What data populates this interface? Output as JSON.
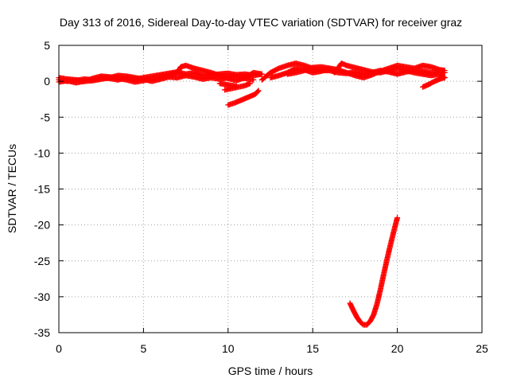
{
  "chart_data": {
    "type": "scatter",
    "title": "Day 313 of 2016, Sidereal Day-to-day VTEC variation (SDTVAR) for receiver graz",
    "xlabel": "GPS time / hours",
    "ylabel": "SDTVAR / TECUs",
    "xlim": [
      0,
      25
    ],
    "ylim": [
      -35,
      5
    ],
    "x_ticks": [
      0,
      5,
      10,
      15,
      20,
      25
    ],
    "y_ticks": [
      5,
      0,
      -5,
      -10,
      -15,
      -20,
      -25,
      -30,
      -35
    ],
    "grid": true,
    "legend": "none",
    "marker": "plus",
    "color": "#ff0000",
    "series": [
      {
        "points": [
          [
            0,
            0.2
          ],
          [
            0.5,
            0.0
          ],
          [
            1,
            0.1
          ],
          [
            1.5,
            0.3
          ],
          [
            2,
            0.2
          ],
          [
            2.5,
            0.5
          ],
          [
            3,
            0.4
          ],
          [
            3.5,
            0.2
          ],
          [
            4,
            0.5
          ],
          [
            4.5,
            0.3
          ],
          [
            5,
            0.5
          ],
          [
            5.5,
            0.7
          ],
          [
            6,
            0.9
          ],
          [
            6.5,
            1.1
          ],
          [
            7,
            1.3
          ],
          [
            7.5,
            1.0
          ],
          [
            8,
            1.2
          ],
          [
            8.5,
            0.8
          ],
          [
            9,
            0.9
          ],
          [
            9.5,
            1.0
          ],
          [
            10,
            1.1
          ],
          [
            10.5,
            0.9
          ],
          [
            11,
            1.0
          ],
          [
            11.5,
            0.8
          ],
          [
            12,
            1.0
          ]
        ]
      },
      {
        "points": [
          [
            0,
            0.5
          ],
          [
            0.5,
            0.3
          ],
          [
            1,
            0.2
          ],
          [
            1.5,
            0.0
          ],
          [
            2,
            0.1
          ],
          [
            2.5,
            0.3
          ],
          [
            3,
            0.5
          ],
          [
            3.5,
            0.8
          ],
          [
            4,
            0.7
          ],
          [
            4.5,
            0.5
          ],
          [
            5,
            0.3
          ],
          [
            5.5,
            0.0
          ],
          [
            6,
            0.3
          ],
          [
            6.5,
            0.6
          ],
          [
            7,
            0.5
          ],
          [
            7.5,
            0.8
          ],
          [
            8,
            0.6
          ],
          [
            8.5,
            0.3
          ],
          [
            9,
            0.5
          ],
          [
            9.5,
            0.3
          ],
          [
            10,
            0.5
          ],
          [
            10.5,
            0.7
          ],
          [
            11,
            0.4
          ],
          [
            11.5,
            0.2
          ]
        ]
      },
      {
        "points": [
          [
            0,
            -0.1
          ],
          [
            0.5,
            0.1
          ],
          [
            1,
            -0.2
          ],
          [
            1.5,
            0.0
          ],
          [
            2,
            0.4
          ],
          [
            2.5,
            0.7
          ],
          [
            3,
            0.6
          ],
          [
            3.5,
            0.4
          ],
          [
            4,
            0.2
          ],
          [
            4.5,
            -0.1
          ],
          [
            5,
            0.1
          ],
          [
            5.5,
            0.3
          ],
          [
            6,
            0.5
          ],
          [
            6.5,
            0.8
          ],
          [
            7,
            1.2
          ],
          [
            7.2,
            2.0
          ],
          [
            7.5,
            2.2
          ],
          [
            8,
            1.8
          ],
          [
            8.5,
            1.5
          ],
          [
            9,
            1.2
          ],
          [
            9.5,
            0.8
          ],
          [
            10,
            0.4
          ],
          [
            10.5,
            0.1
          ],
          [
            11,
            0.5
          ],
          [
            11.5,
            1.2
          ],
          [
            12,
            1.0
          ]
        ]
      },
      {
        "points": [
          [
            9.8,
            -1.2
          ],
          [
            10.2,
            -1.0
          ],
          [
            10.6,
            -0.8
          ],
          [
            11.0,
            -0.6
          ],
          [
            11.3,
            -0.3
          ]
        ]
      },
      {
        "points": [
          [
            9.5,
            -0.3
          ],
          [
            10.0,
            -0.5
          ],
          [
            10.5,
            -0.7
          ]
        ]
      },
      {
        "points": [
          [
            10.0,
            -3.3
          ],
          [
            10.4,
            -3.0
          ],
          [
            10.8,
            -2.6
          ],
          [
            11.2,
            -2.2
          ],
          [
            11.6,
            -1.8
          ],
          [
            11.8,
            -1.3
          ]
        ]
      },
      {
        "points": [
          [
            12,
            0.2
          ],
          [
            12.5,
            1.2
          ],
          [
            13,
            1.8
          ],
          [
            13.5,
            2.2
          ],
          [
            14,
            2.5
          ],
          [
            14.5,
            2.2
          ],
          [
            15,
            1.8
          ],
          [
            15.5,
            1.5
          ],
          [
            16,
            1.5
          ],
          [
            16.5,
            1.2
          ],
          [
            17,
            1.1
          ],
          [
            17.5,
            1.3
          ],
          [
            18,
            1.0
          ],
          [
            18.5,
            1.2
          ],
          [
            19,
            1.5
          ],
          [
            19.5,
            1.3
          ],
          [
            20,
            1.0
          ],
          [
            20.5,
            1.3
          ],
          [
            21,
            1.5
          ],
          [
            21.5,
            1.4
          ],
          [
            22,
            1.2
          ],
          [
            22.5,
            1.3
          ],
          [
            22.8,
            1.2
          ]
        ]
      },
      {
        "points": [
          [
            12.5,
            0.5
          ],
          [
            13,
            0.8
          ],
          [
            13.5,
            1.2
          ],
          [
            14,
            1.8
          ],
          [
            14.5,
            1.6
          ],
          [
            15,
            1.2
          ],
          [
            15.5,
            1.4
          ],
          [
            16,
            1.8
          ],
          [
            16.5,
            1.6
          ],
          [
            17,
            1.2
          ],
          [
            17.5,
            0.8
          ],
          [
            18,
            0.5
          ],
          [
            18.5,
            0.9
          ],
          [
            19,
            1.4
          ],
          [
            19.5,
            1.8
          ],
          [
            20,
            2.2
          ],
          [
            20.5,
            2.0
          ],
          [
            21,
            1.8
          ],
          [
            21.5,
            2.2
          ],
          [
            22,
            2.0
          ],
          [
            22.5,
            1.6
          ],
          [
            22.8,
            1.5
          ]
        ]
      },
      {
        "points": [
          [
            13.5,
            1.0
          ],
          [
            14,
            1.2
          ],
          [
            14.5,
            1.5
          ],
          [
            15,
            1.9
          ],
          [
            15.5,
            2.0
          ],
          [
            16,
            1.8
          ],
          [
            16.3,
            1.2
          ],
          [
            16.7,
            2.5
          ],
          [
            17,
            2.2
          ],
          [
            17.5,
            1.9
          ],
          [
            18,
            1.6
          ],
          [
            18.5,
            1.3
          ],
          [
            19,
            1.2
          ],
          [
            19.5,
            1.5
          ],
          [
            20,
            1.8
          ],
          [
            20.5,
            1.5
          ],
          [
            21,
            1.2
          ],
          [
            21.5,
            1.0
          ],
          [
            22,
            0.8
          ],
          [
            22.5,
            1.0
          ],
          [
            22.8,
            0.5
          ]
        ]
      },
      {
        "points": [
          [
            21.5,
            -0.8
          ],
          [
            21.8,
            -0.5
          ],
          [
            22.2,
            0.0
          ],
          [
            22.6,
            0.4
          ],
          [
            22.8,
            0.5
          ]
        ]
      },
      {
        "points": [
          [
            17.2,
            -30.9
          ],
          [
            17.4,
            -31.9
          ],
          [
            17.6,
            -32.8
          ],
          [
            17.8,
            -33.5
          ],
          [
            18.0,
            -33.9
          ],
          [
            18.2,
            -33.9
          ],
          [
            18.4,
            -33.4
          ],
          [
            18.6,
            -32.5
          ],
          [
            18.8,
            -31.0
          ],
          [
            19.0,
            -29.0
          ],
          [
            19.2,
            -26.8
          ],
          [
            19.4,
            -24.7
          ],
          [
            19.6,
            -22.7
          ],
          [
            19.8,
            -20.8
          ],
          [
            20.0,
            -19.0
          ]
        ]
      }
    ]
  }
}
